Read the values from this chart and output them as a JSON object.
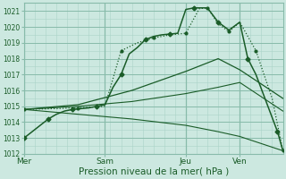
{
  "xlabel": "Pression niveau de la mer( hPa )",
  "ylim": [
    1012,
    1021.5
  ],
  "yticks": [
    1012,
    1013,
    1014,
    1015,
    1016,
    1017,
    1018,
    1019,
    1020,
    1021
  ],
  "bg_color": "#cce8e0",
  "grid_major_color": "#88bbaa",
  "grid_minor_color": "#aad4c8",
  "line_color": "#1a5c28",
  "xtick_labels": [
    "Mer",
    "Sam",
    "Jeu",
    "Ven"
  ],
  "xtick_positions": [
    0,
    30,
    60,
    80
  ],
  "xlim": [
    0,
    96
  ],
  "vline_positions": [
    0,
    30,
    60,
    80
  ],
  "series": [
    {
      "x": [
        0,
        3,
        6,
        9,
        12,
        15,
        18,
        21,
        24,
        27,
        30,
        33,
        36,
        39,
        42,
        45,
        48,
        51,
        54,
        57,
        60,
        63,
        65,
        68,
        72,
        76,
        80,
        83,
        86,
        90,
        94,
        96
      ],
      "y": [
        1013.0,
        1013.4,
        1013.8,
        1014.2,
        1014.5,
        1014.7,
        1014.8,
        1014.85,
        1014.9,
        1015.0,
        1015.1,
        1016.2,
        1017.0,
        1018.3,
        1018.7,
        1019.2,
        1019.4,
        1019.5,
        1019.55,
        1019.6,
        1021.1,
        1021.2,
        1021.2,
        1021.2,
        1020.3,
        1019.8,
        1020.3,
        1018.0,
        1017.0,
        1015.2,
        1013.4,
        1012.2
      ],
      "marker": "D",
      "markersize": 2.5,
      "linewidth": 1.1,
      "linestyle": "-",
      "markevery": 3
    },
    {
      "x": [
        0,
        10,
        20,
        30,
        36,
        42,
        48,
        54,
        60,
        65,
        68,
        72,
        76,
        80,
        86,
        92,
        96
      ],
      "y": [
        1014.8,
        1014.85,
        1014.9,
        1015.0,
        1018.5,
        1019.0,
        1019.3,
        1019.5,
        1019.6,
        1021.15,
        1021.2,
        1020.2,
        1019.7,
        1020.3,
        1018.5,
        1015.5,
        1012.2
      ],
      "marker": "o",
      "markersize": 2.0,
      "linewidth": 0.9,
      "linestyle": ":",
      "markevery": 2
    },
    {
      "x": [
        0,
        20,
        40,
        60,
        72,
        80,
        96
      ],
      "y": [
        1014.8,
        1015.1,
        1016.0,
        1017.2,
        1018.0,
        1017.3,
        1015.5
      ],
      "marker": null,
      "markersize": 0,
      "linewidth": 0.9,
      "linestyle": "-"
    },
    {
      "x": [
        0,
        20,
        40,
        60,
        72,
        80,
        96
      ],
      "y": [
        1014.8,
        1015.0,
        1015.3,
        1015.8,
        1016.2,
        1016.5,
        1014.7
      ],
      "marker": null,
      "markersize": 0,
      "linewidth": 0.8,
      "linestyle": "-"
    },
    {
      "x": [
        0,
        20,
        40,
        60,
        72,
        80,
        96
      ],
      "y": [
        1014.8,
        1014.5,
        1014.2,
        1013.8,
        1013.4,
        1013.1,
        1012.2
      ],
      "marker": null,
      "markersize": 0,
      "linewidth": 0.8,
      "linestyle": "-"
    }
  ],
  "ytick_fontsize": 5.5,
  "xtick_fontsize": 6.5,
  "xlabel_fontsize": 7.5
}
